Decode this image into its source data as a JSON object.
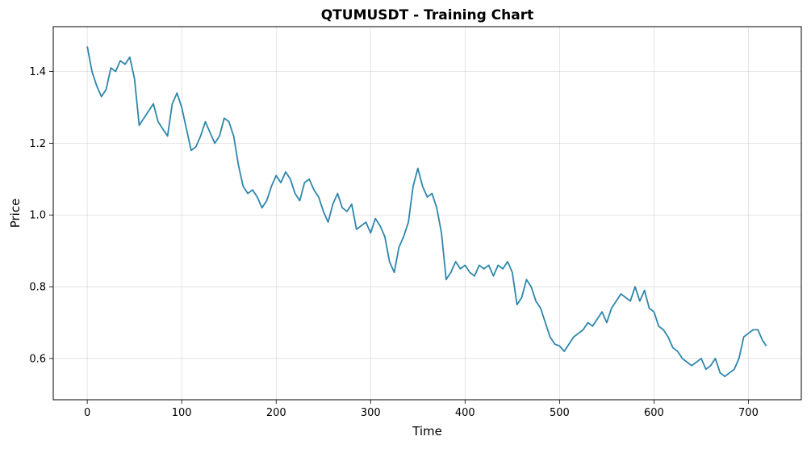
{
  "chart_data": {
    "type": "line",
    "title": "QTUMUSDT - Training Chart",
    "xlabel": "Time",
    "ylabel": "Price",
    "xlim": [
      -36,
      756
    ],
    "ylim": [
      0.485,
      1.525
    ],
    "x_ticks": [
      0,
      100,
      200,
      300,
      400,
      500,
      600,
      700
    ],
    "y_ticks": [
      0.6,
      0.8,
      1.0,
      1.2,
      1.4
    ],
    "y_tick_labels": [
      "0.6",
      "0.8",
      "1.0",
      "1.2",
      "1.4"
    ],
    "grid": true,
    "legend": "none",
    "line_color": "#2e86ab",
    "series": [
      {
        "x": [
          0,
          5,
          10,
          15,
          20,
          25,
          30,
          35,
          40,
          45,
          50,
          55,
          60,
          65,
          70,
          75,
          80,
          85,
          90,
          95,
          100,
          105,
          110,
          115,
          120,
          125,
          130,
          135,
          140,
          145,
          150,
          155,
          160,
          165,
          170,
          175,
          180,
          185,
          190,
          195,
          200,
          205,
          210,
          215,
          220,
          225,
          230,
          235,
          240,
          245,
          250,
          255,
          260,
          265,
          270,
          275,
          280,
          285,
          290,
          295,
          300,
          305,
          310,
          315,
          320,
          325,
          330,
          335,
          340,
          345,
          350,
          355,
          360,
          365,
          370,
          375,
          380,
          385,
          390,
          395,
          400,
          405,
          410,
          415,
          420,
          425,
          430,
          435,
          440,
          445,
          450,
          455,
          460,
          465,
          470,
          475,
          480,
          485,
          490,
          495,
          500,
          505,
          510,
          515,
          520,
          525,
          530,
          535,
          540,
          545,
          550,
          555,
          560,
          565,
          570,
          575,
          580,
          585,
          590,
          595,
          600,
          605,
          610,
          615,
          620,
          625,
          630,
          635,
          640,
          645,
          650,
          655,
          660,
          665,
          670,
          675,
          680,
          685,
          690,
          695,
          700,
          705,
          710,
          715,
          719
        ],
        "values": [
          1.47,
          1.4,
          1.36,
          1.33,
          1.35,
          1.41,
          1.4,
          1.43,
          1.42,
          1.44,
          1.38,
          1.25,
          1.27,
          1.29,
          1.31,
          1.26,
          1.24,
          1.22,
          1.31,
          1.34,
          1.3,
          1.24,
          1.18,
          1.19,
          1.22,
          1.26,
          1.23,
          1.2,
          1.22,
          1.27,
          1.26,
          1.22,
          1.14,
          1.08,
          1.06,
          1.07,
          1.05,
          1.02,
          1.04,
          1.08,
          1.11,
          1.09,
          1.12,
          1.1,
          1.06,
          1.04,
          1.09,
          1.1,
          1.07,
          1.05,
          1.01,
          0.98,
          1.03,
          1.06,
          1.02,
          1.01,
          1.03,
          0.96,
          0.97,
          0.98,
          0.95,
          0.99,
          0.97,
          0.94,
          0.87,
          0.84,
          0.91,
          0.94,
          0.98,
          1.08,
          1.13,
          1.08,
          1.05,
          1.06,
          1.02,
          0.95,
          0.82,
          0.84,
          0.87,
          0.85,
          0.86,
          0.84,
          0.83,
          0.86,
          0.85,
          0.86,
          0.83,
          0.86,
          0.85,
          0.87,
          0.84,
          0.75,
          0.77,
          0.82,
          0.8,
          0.76,
          0.74,
          0.7,
          0.66,
          0.64,
          0.635,
          0.62,
          0.64,
          0.66,
          0.67,
          0.68,
          0.7,
          0.69,
          0.71,
          0.73,
          0.7,
          0.74,
          0.76,
          0.78,
          0.77,
          0.76,
          0.8,
          0.76,
          0.79,
          0.74,
          0.73,
          0.69,
          0.68,
          0.66,
          0.63,
          0.62,
          0.6,
          0.59,
          0.58,
          0.59,
          0.6,
          0.57,
          0.58,
          0.6,
          0.56,
          0.55,
          0.56,
          0.57,
          0.6,
          0.66,
          0.67,
          0.68,
          0.68,
          0.65,
          0.635
        ]
      }
    ]
  }
}
